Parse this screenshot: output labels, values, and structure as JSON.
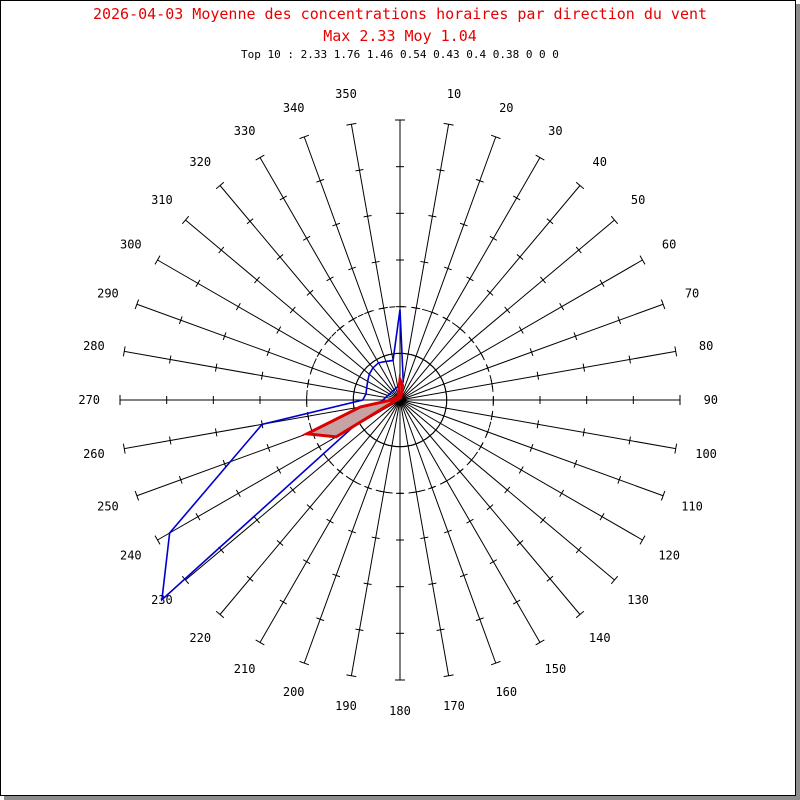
{
  "header": {
    "title": "2026-04-03 Moyenne des concentrations horaires par direction du vent",
    "subtitle": "Max 2.33 Moy 1.04",
    "top10_label": "Top 10 : 2.33 1.76 1.46 0.54 0.43 0.4 0.38 0 0 0"
  },
  "chart_data": {
    "type": "polar",
    "title": "2026-04-03 Moyenne des concentrations horaires par direction du vent",
    "directions": [
      0,
      10,
      20,
      30,
      40,
      50,
      60,
      70,
      80,
      90,
      100,
      110,
      120,
      130,
      140,
      150,
      160,
      170,
      180,
      190,
      200,
      210,
      220,
      230,
      240,
      250,
      260,
      270,
      280,
      290,
      300,
      310,
      320,
      330,
      340,
      350
    ],
    "direction_labels": [
      "10",
      "20",
      "30",
      "40",
      "50",
      "60",
      "70",
      "80",
      "90",
      "100",
      "110",
      "120",
      "130",
      "140",
      "150",
      "160",
      "170",
      "180",
      "190",
      "200",
      "210",
      "220",
      "230",
      "240",
      "250",
      "260",
      "270",
      "280",
      "290",
      "300",
      "310",
      "320",
      "330",
      "340",
      "350"
    ],
    "r_max": 3,
    "dashed_circle_at": 1,
    "series": [
      {
        "color": "#0000cc",
        "fill": "none",
        "points": [
          {
            "dir": 0,
            "value": 0.97
          },
          {
            "dir": 10,
            "value": 0.2
          },
          {
            "dir": 230,
            "value": 3.33
          },
          {
            "dir": 240,
            "value": 2.85
          },
          {
            "dir": 260,
            "value": 1.5
          },
          {
            "dir": 270,
            "value": 0.4
          },
          {
            "dir": 280,
            "value": 0.37
          },
          {
            "dir": 290,
            "value": 0.38
          },
          {
            "dir": 300,
            "value": 0.4
          },
          {
            "dir": 310,
            "value": 0.43
          },
          {
            "dir": 320,
            "value": 0.45
          },
          {
            "dir": 330,
            "value": 0.46
          },
          {
            "dir": 340,
            "value": 0.44
          },
          {
            "dir": 350,
            "value": 0.43
          }
        ]
      },
      {
        "color": "#dd0000",
        "fill": "#c8a3a3",
        "points": [
          {
            "dir": 0,
            "value": 0.22
          },
          {
            "dir": 10,
            "value": 0.16
          },
          {
            "dir": 20,
            "value": 0.03
          },
          {
            "dir": 240,
            "value": 0.79
          },
          {
            "dir": 250,
            "value": 1.06
          },
          {
            "dir": 260,
            "value": 0.43
          },
          {
            "dir": 270,
            "value": 0.09
          },
          {
            "dir": 300,
            "value": 0.05
          },
          {
            "dir": 330,
            "value": 0.04
          },
          {
            "dir": 350,
            "value": 0.09
          }
        ]
      }
    ]
  }
}
